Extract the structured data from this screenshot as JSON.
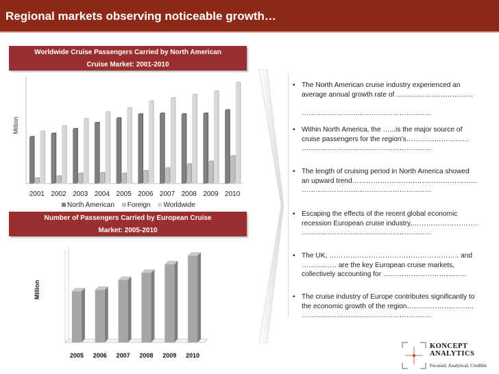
{
  "page": {
    "title": "Regional markets observing noticeable growth…"
  },
  "chart_data": [
    {
      "type": "bar",
      "title": "Worldwide Cruise Passengers Carried by North American Cruise Market: 2001-2010",
      "title_lines": [
        "Worldwide Cruise Passengers Carried by North American",
        "Cruise Market: 2001-2010"
      ],
      "ylabel": "Million",
      "xlabel": "",
      "categories": [
        "2001",
        "2002",
        "2003",
        "2004",
        "2005",
        "2006",
        "2007",
        "2008",
        "2009",
        "2010"
      ],
      "series": [
        {
          "name": "North American",
          "values": [
            7.0,
            7.5,
            8.2,
            9.1,
            9.8,
            10.4,
            10.5,
            10.4,
            10.5,
            11.0
          ]
        },
        {
          "name": "Foreign",
          "values": [
            0.8,
            1.1,
            1.5,
            1.6,
            1.5,
            1.9,
            2.3,
            2.9,
            3.3,
            4.1
          ]
        },
        {
          "name": "Worldwide",
          "values": [
            7.8,
            8.6,
            9.7,
            10.7,
            11.3,
            12.3,
            12.8,
            13.3,
            13.8,
            15.1
          ]
        }
      ],
      "ylim": [
        0,
        16
      ],
      "legend": "bottom",
      "colors": {
        "North American": "#7f7f7f",
        "Foreign": "#bfbfbf",
        "Worldwide": "#d9d9d9"
      }
    },
    {
      "type": "bar",
      "title": "Number of Passengers Carried by European Cruise Market: 2005-2010",
      "title_lines": [
        "Number of Passengers Carried by European Cruise",
        "Market: 2005-2010"
      ],
      "ylabel": "Million",
      "xlabel": "",
      "categories": [
        "2005",
        "2006",
        "2007",
        "2008",
        "2009",
        "2010"
      ],
      "series": [
        {
          "name": "Passengers",
          "values": [
            3.6,
            3.7,
            4.4,
            4.9,
            5.5,
            6.1
          ]
        }
      ],
      "ylim": [
        0,
        6.5
      ],
      "colors": {
        "Passengers": "#a6a6a6"
      }
    }
  ],
  "bullets": [
    {
      "lines": [
        "The North American cruise industry experienced an",
        "average annual growth rate of ……………………………",
        "",
        "…………………………………………….…."
      ]
    },
    {
      "lines": [
        "Within North America, the …...is the major source of",
        "cruise passengers for the region’s………………………",
        "…………………………………………….…."
      ]
    },
    {
      "lines": [
        "The length of cruising period in North America  showed",
        "an upward trend………………………………………………",
        "…………………………………………….…."
      ]
    },
    {
      "lines": [
        "Escaping the effects of the recent global economic",
        "recession European cruise industry,………………………..",
        "…………………………………………….…."
      ]
    },
    {
      "lines": [
        "The UK, ……………………………………………….. and",
        "…………… are the key European cruise markets,",
        "collectively accounting for ………………………………"
      ]
    },
    {
      "lines": [
        "The cruise industry of Europe contributes significantly to",
        "the economic  growth of the  region………………………..",
        "…………………………………………….…."
      ]
    }
  ],
  "logo": {
    "name_line1": "KONCEPT",
    "name_line2": "ANALYTICS",
    "tagline": "Focused, Analytical, Credible"
  }
}
